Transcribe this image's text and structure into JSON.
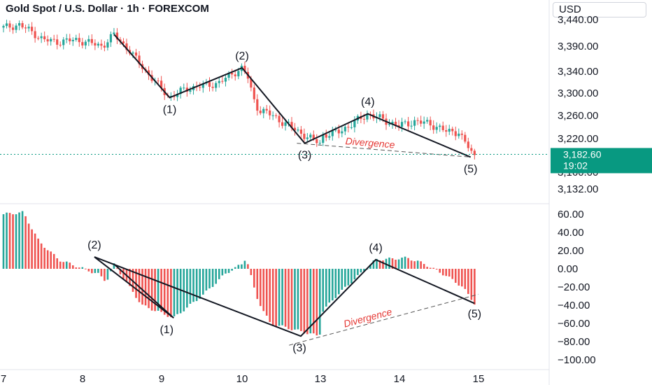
{
  "header": {
    "title": "Gold Spot / U.S. Dollar · 1h · FOREXCOM",
    "currency": "USD"
  },
  "price_tag": {
    "price": "3,182.60",
    "countdown": "19:02"
  },
  "colors": {
    "up": "#26a69a",
    "down": "#ef5350",
    "wave": "#131722",
    "divergence": "#e53935",
    "price_line": "#089981",
    "tag_bg": "#089981"
  },
  "chart_data": [
    {
      "type": "candlestick",
      "title": "",
      "x_ticks": [
        "7",
        "8",
        "9",
        "10",
        "13",
        "14",
        "15"
      ],
      "y_ticks": [
        "3,440.00",
        "3,390.00",
        "3,340.00",
        "3,300.00",
        "3,260.00",
        "3,220.00",
        "3,180.00",
        "3,160.00",
        "3,132.00"
      ],
      "y_tick_values": [
        3440,
        3390,
        3340,
        3300,
        3260,
        3220,
        3180,
        3160,
        3132
      ],
      "ylim": [
        3118,
        3465
      ],
      "current_price": 3182.6,
      "wave_points": [
        {
          "label": "",
          "x": 8.4,
          "y": 3412
        },
        {
          "label": "(1)",
          "x": 9.1,
          "y": 3292
        },
        {
          "label": "(2)",
          "x": 10.0,
          "y": 3347
        },
        {
          "label": "(3)",
          "x": 12.8,
          "y": 3209
        },
        {
          "label": "(4)",
          "x": 13.6,
          "y": 3263
        },
        {
          "label": "(5)",
          "x": 14.9,
          "y": 3178
        }
      ],
      "divergence_line": {
        "label": "Divergence",
        "from": {
          "x": 12.7,
          "y": 3209
        },
        "to": {
          "x": 14.9,
          "y": 3178
        }
      }
    },
    {
      "type": "histogram",
      "title": "",
      "y_ticks": [
        "60.00",
        "40.00",
        "20.00",
        "0.00",
        "−20.00",
        "−40.00",
        "−60.00",
        "−80.00",
        "−100.00"
      ],
      "y_tick_values": [
        60,
        40,
        20,
        0,
        -20,
        -40,
        -60,
        -80,
        -100
      ],
      "ylim": [
        -110,
        70
      ],
      "wave_points": [
        {
          "label": "",
          "x": 8.4,
          "y": 5
        },
        {
          "label": "(1)",
          "x": 9.15,
          "y": -54
        },
        {
          "label": "(2)",
          "x": 10.15,
          "y": 13
        },
        {
          "label": "(3)",
          "x": 12.75,
          "y": -74
        },
        {
          "label": "(4)",
          "x": 13.7,
          "y": 10
        },
        {
          "label": "(5)",
          "x": 14.95,
          "y": -38
        }
      ],
      "divergence_line": {
        "label": "Divergence",
        "from": {
          "x": 12.6,
          "y": -84
        },
        "to": {
          "x": 15.6,
          "y": -28
        }
      }
    }
  ]
}
